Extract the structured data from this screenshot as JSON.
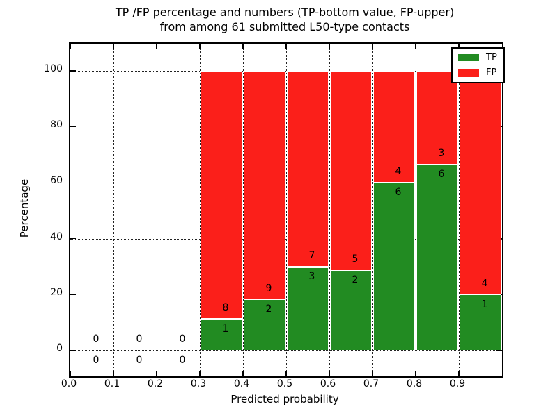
{
  "chart_data": {
    "type": "bar",
    "stacked": true,
    "title_line1": "TP /FP percentage and numbers (TP-bottom value, FP-upper)",
    "title_line2": "from among 61 submitted L50-type contacts",
    "xlabel": "Predicted probability",
    "ylabel": "Percentage",
    "xlim": [
      0.0,
      1.0
    ],
    "ylim": [
      -10,
      110
    ],
    "grid": "dotted",
    "total_contacts": 61,
    "colors": {
      "tp": "#228b22",
      "fp": "#fb1f1a"
    },
    "legend": {
      "position": "upper-right",
      "entries": [
        {
          "label": "TP",
          "color": "#228b22"
        },
        {
          "label": "FP",
          "color": "#fb1f1a"
        }
      ]
    },
    "xticks": [
      {
        "v": 0.0,
        "label": "0.0"
      },
      {
        "v": 0.1,
        "label": "0.1"
      },
      {
        "v": 0.2,
        "label": "0.2"
      },
      {
        "v": 0.3,
        "label": "0.3"
      },
      {
        "v": 0.4,
        "label": "0.4"
      },
      {
        "v": 0.5,
        "label": "0.5"
      },
      {
        "v": 0.6,
        "label": "0.6"
      },
      {
        "v": 0.7,
        "label": "0.7"
      },
      {
        "v": 0.8,
        "label": "0.8"
      },
      {
        "v": 0.9,
        "label": "0.9"
      }
    ],
    "yticks": [
      {
        "v": 0,
        "label": "0"
      },
      {
        "v": 20,
        "label": "20"
      },
      {
        "v": 40,
        "label": "40"
      },
      {
        "v": 60,
        "label": "60"
      },
      {
        "v": 80,
        "label": "80"
      },
      {
        "v": 100,
        "label": "100"
      }
    ],
    "bins": [
      {
        "x_start": 0.0,
        "x_end": 0.1,
        "tp_count": 0,
        "fp_count": 0,
        "tp_pct": 0,
        "fp_pct": 0
      },
      {
        "x_start": 0.1,
        "x_end": 0.2,
        "tp_count": 0,
        "fp_count": 0,
        "tp_pct": 0,
        "fp_pct": 0
      },
      {
        "x_start": 0.2,
        "x_end": 0.3,
        "tp_count": 0,
        "fp_count": 0,
        "tp_pct": 0,
        "fp_pct": 0
      },
      {
        "x_start": 0.3,
        "x_end": 0.4,
        "tp_count": 1,
        "fp_count": 8,
        "tp_pct": 11.11,
        "fp_pct": 88.89
      },
      {
        "x_start": 0.4,
        "x_end": 0.5,
        "tp_count": 2,
        "fp_count": 9,
        "tp_pct": 18.18,
        "fp_pct": 81.82
      },
      {
        "x_start": 0.5,
        "x_end": 0.6,
        "tp_count": 3,
        "fp_count": 7,
        "tp_pct": 30.0,
        "fp_pct": 70.0
      },
      {
        "x_start": 0.6,
        "x_end": 0.7,
        "tp_count": 2,
        "fp_count": 5,
        "tp_pct": 28.57,
        "fp_pct": 71.43
      },
      {
        "x_start": 0.7,
        "x_end": 0.8,
        "tp_count": 6,
        "fp_count": 4,
        "tp_pct": 60.0,
        "fp_pct": 40.0
      },
      {
        "x_start": 0.8,
        "x_end": 0.9,
        "tp_count": 6,
        "fp_count": 3,
        "tp_pct": 66.67,
        "fp_pct": 33.33
      },
      {
        "x_start": 0.9,
        "x_end": 1.0,
        "tp_count": 1,
        "fp_count": 4,
        "tp_pct": 20.0,
        "fp_pct": 80.0
      }
    ]
  }
}
